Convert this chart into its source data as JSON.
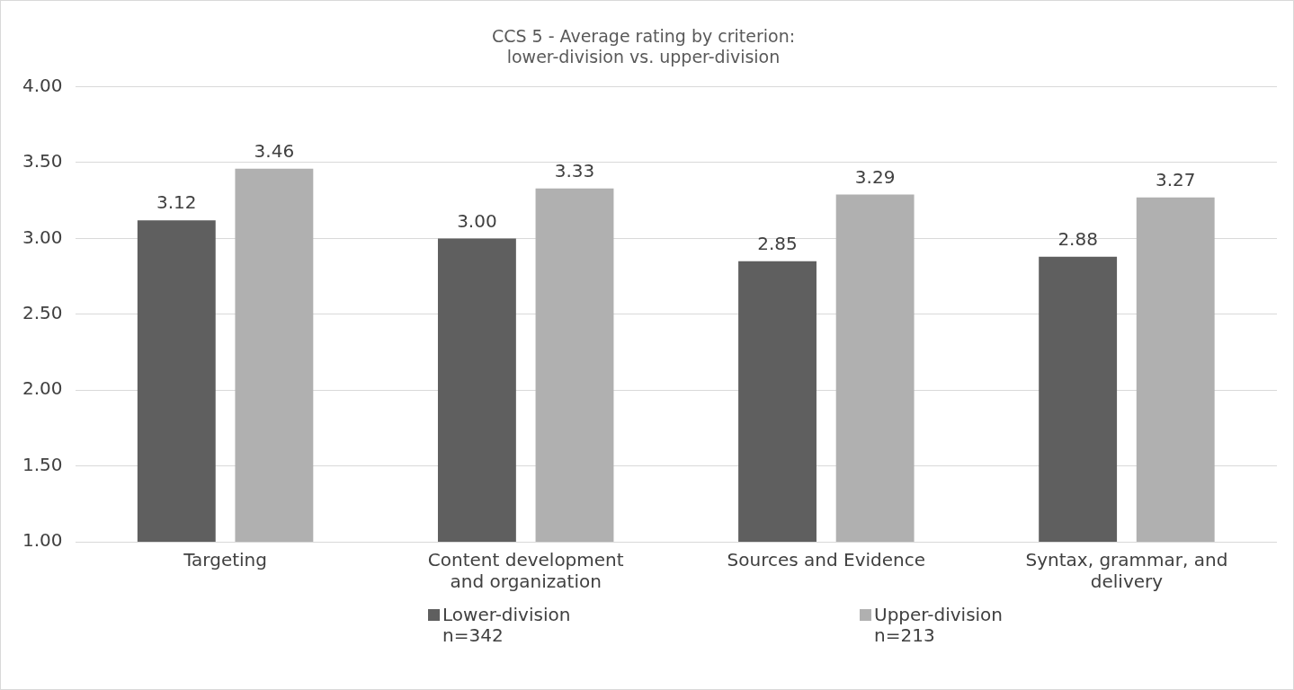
{
  "chart_data": {
    "type": "bar",
    "title": "CCS 5 - Average rating by criterion:\nlower-division vs. upper-division",
    "categories": [
      "Targeting",
      "Content development and organization",
      "Sources and Evidence",
      "Syntax, grammar, and delivery"
    ],
    "series": [
      {
        "name": "Lower-division\nn=342",
        "color": "#5f5f5f",
        "values": [
          3.12,
          3.0,
          2.85,
          2.88
        ],
        "value_labels": [
          "3.12",
          "3.00",
          "2.85",
          "2.88"
        ]
      },
      {
        "name": "Upper-division\nn=213",
        "color": "#b0b0b0",
        "values": [
          3.46,
          3.33,
          3.29,
          3.27
        ],
        "value_labels": [
          "3.46",
          "3.33",
          "3.29",
          "3.27"
        ]
      }
    ],
    "ylim": [
      1,
      4
    ],
    "yticks": [
      {
        "value": 1,
        "label": "1.00"
      },
      {
        "value": 1.5,
        "label": "1.50"
      },
      {
        "value": 2,
        "label": "2.00"
      },
      {
        "value": 2.5,
        "label": "2.50"
      },
      {
        "value": 3,
        "label": "3.00"
      },
      {
        "value": 3.5,
        "label": "3.50"
      },
      {
        "value": 4,
        "label": "4.00"
      }
    ],
    "grid": "y",
    "legend": "bottom"
  }
}
